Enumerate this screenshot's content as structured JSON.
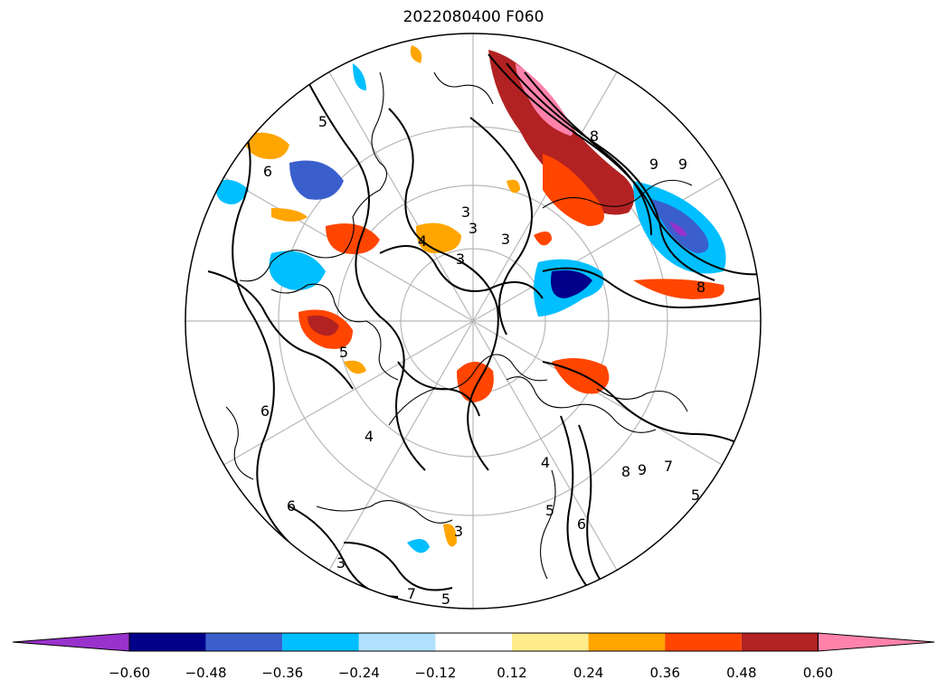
{
  "title": "2022080400 F060",
  "map": {
    "projection": "north polar stereographic",
    "graticule": true,
    "contour_color": "#000000",
    "contour_labels": [
      "5",
      "6",
      "4",
      "3",
      "3",
      "3",
      "3",
      "4",
      "5",
      "6",
      "8",
      "8",
      "9",
      "9",
      "6",
      "7",
      "5",
      "3",
      "4",
      "5",
      "9",
      "8",
      "6",
      "7",
      "5",
      "3"
    ]
  },
  "colorbar": {
    "extend": "both",
    "colors": [
      "#9932cc",
      "#00008b",
      "#3a5fcd",
      "#00bfff",
      "#b0e2ff",
      "#ffffff",
      "#ffec8b",
      "#ffa500",
      "#ff4500",
      "#b22222",
      "#ff82ab"
    ],
    "ticks": [
      "−0.60",
      "−0.48",
      "−0.36",
      "−0.24",
      "−0.12",
      "0.12",
      "0.24",
      "0.36",
      "0.48",
      "0.60"
    ]
  }
}
